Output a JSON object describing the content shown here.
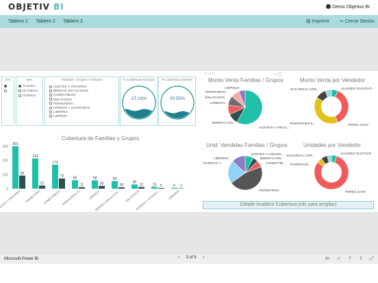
{
  "header": {
    "logo_main": "OBJETIV",
    "logo_accent": "BI",
    "user": "Demo Objetivo BI"
  },
  "nav": {
    "tabs": [
      "Tablero 1",
      "Tablero 2",
      "Tablero 3"
    ],
    "print": "Imprimir",
    "logout": "Cerrar Sesión"
  },
  "slicers": {
    "anio": {
      "title": "Año",
      "items": [
        ""
      ]
    },
    "mes": {
      "title": "Mes",
      "items": [
        "01 Enero",
        "02 Febrero",
        "03 Marzo"
      ]
    },
    "familias": {
      "title": "Familias / Grupos / Articulos",
      "items": [
        "ACEITES Y VINAGRES",
        "BEBIDAS SIN ALCOHOL",
        "COMESTIBLES",
        "ENLATADOS",
        "FERRETERIA",
        "HARINAS Y LEVADURAS",
        "LIBRERIA",
        "LIMPIEZA"
      ]
    }
  },
  "kpis": [
    {
      "title": "% Cobertura Articulos",
      "value": "27.23%",
      "fill": 0.2723
    },
    {
      "title": "% Cobertura Clientes",
      "value": "20.55%",
      "fill": 0.2055
    }
  ],
  "chart_data": [
    {
      "type": "bar",
      "title": "Cobertura de Familias y Grupos",
      "categories": [
        "ACEITES Y VINAGRES",
        "FERRETERIA",
        "COMESTIBLES",
        "ENVASADOS (?)",
        "LIMPIEZA",
        "BEBIDAS SIN ALCOH...",
        "ENLATADOS",
        "HARINAS Y LEVADO...",
        "LIBRERIA"
      ],
      "ylim": [
        0,
        300
      ],
      "ticks": [
        0,
        100,
        200,
        300
      ],
      "series": [
        {
          "values": [
            301,
            214,
            170,
            60,
            59,
            54,
            30,
            13,
            6
          ],
          "color": "#1fbfa9"
        },
        {
          "values": [
            93,
            22,
            72,
            11,
            20,
            10,
            12,
            5,
            2
          ],
          "color": "#2f4f4f"
        }
      ]
    },
    {
      "type": "pie",
      "title": "Monto Venta Familias / Grupos",
      "slices": [
        {
          "label": "ACEITES Y VINAG...",
          "value": 58,
          "color": "#1fbfa9"
        },
        {
          "label": "BEBIDAS SIN...",
          "value": 10,
          "color": "#2f4f4f"
        },
        {
          "label": "COMESTI...",
          "value": 9,
          "color": "#f05a5a"
        },
        {
          "label": "ENLATADOS",
          "value": 9,
          "color": "#6e6e6e"
        },
        {
          "label": "FERRETERIA",
          "value": 8,
          "color": "#f7a8a8"
        },
        {
          "label": "LIMPIEZA",
          "value": 6,
          "color": "#8b7bbf"
        }
      ]
    },
    {
      "type": "pie",
      "title": "Monto Venta por Vendedor",
      "donut": true,
      "slices": [
        {
          "label": "ALVAREZ GUSTAVO",
          "value": 6,
          "color": "#1fbfa9"
        },
        {
          "label": "PEREZ JUAN",
          "value": 38,
          "color": "#f05a5a"
        },
        {
          "label": "RODRIGUEZ E...",
          "value": 40,
          "color": "#e0c21b"
        },
        {
          "label": "SUCURSAL COR...",
          "value": 10,
          "color": "#444"
        },
        {
          "label": "",
          "value": 6,
          "color": "#9fd9d9"
        }
      ]
    },
    {
      "type": "pie",
      "title": "Unid. Vendidas Familias / Grupos",
      "slices": [
        {
          "label": "ACEITES Y VINAGR...",
          "value": 8,
          "color": "#1fbfa9"
        },
        {
          "label": "BEBIDAS SIN...",
          "value": 5,
          "color": "#2f4f4f"
        },
        {
          "label": "COMESTIB...",
          "value": 6,
          "color": "#f05a5a"
        },
        {
          "label": "FERRETERIA",
          "value": 46,
          "color": "#555"
        },
        {
          "label": "HARINAS Y...",
          "value": 22,
          "color": "#8fd3f4"
        },
        {
          "label": "LIBRERIA",
          "value": 13,
          "color": "#8b7bbf"
        }
      ]
    },
    {
      "type": "pie",
      "title": "Unidades por Vendedor",
      "donut": true,
      "slices": [
        {
          "label": "ALVAREZ GUSTAVO",
          "value": 5,
          "color": "#1fbfa9"
        },
        {
          "label": "PEREZ JUAN",
          "value": 80,
          "color": "#f05a5a"
        },
        {
          "label": "RODRIGUE...",
          "value": 5,
          "color": "#e0c21b"
        },
        {
          "label": "SUCURSAL COR...",
          "value": 6,
          "color": "#444"
        },
        {
          "label": "",
          "value": 4,
          "color": "#9fd9d9"
        }
      ]
    }
  ],
  "detail_link": "Detalle Analitico Cobertura (clic para ampliar)",
  "footer": {
    "brand": "Microsoft Power BI",
    "page": "3 of 5",
    "prev": "‹",
    "next": "›"
  }
}
